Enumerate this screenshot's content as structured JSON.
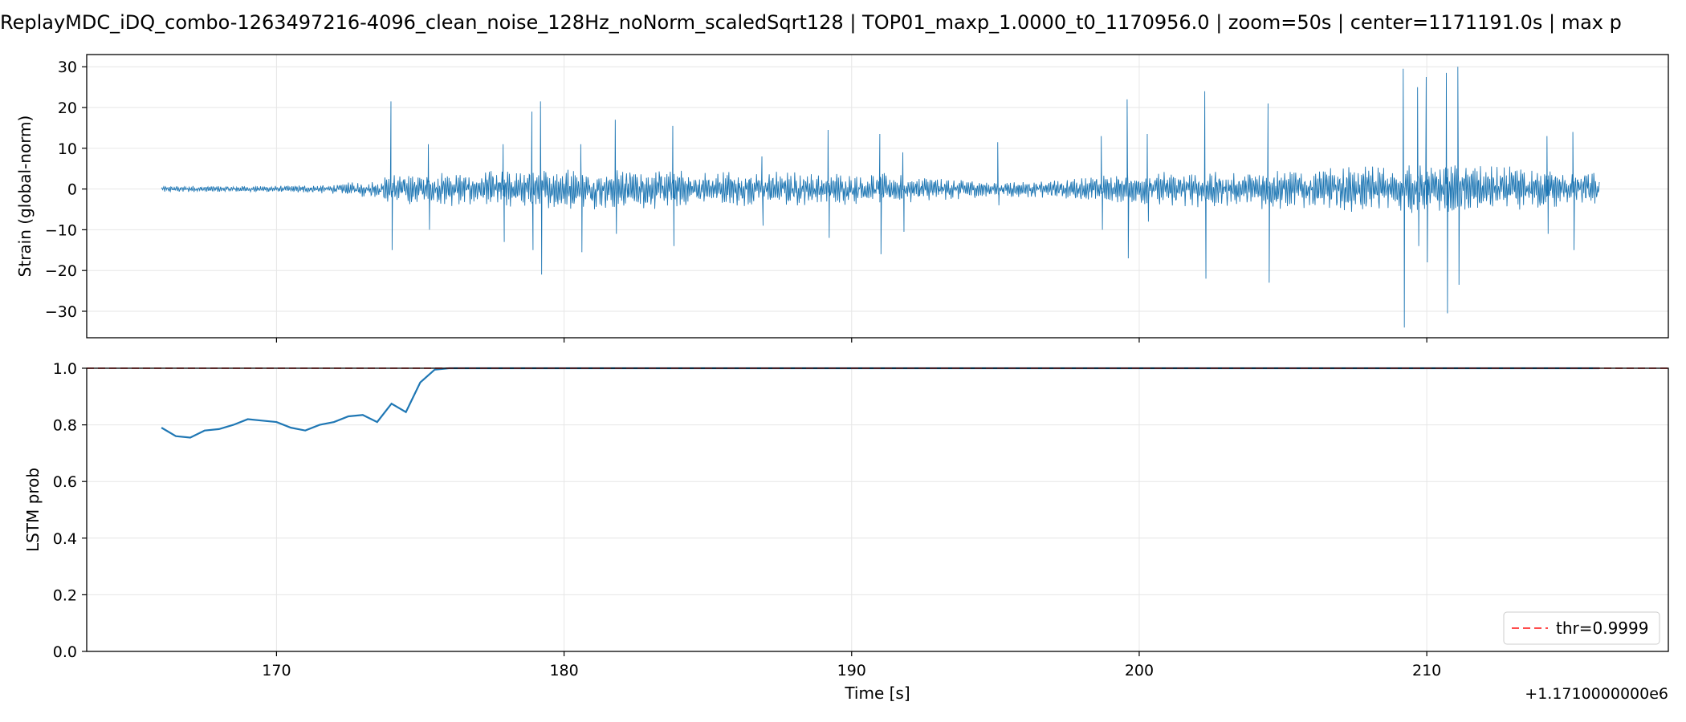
{
  "figure_title": "ReplayMDC_iDQ_combo-1263497216-4096_clean_noise_128Hz_noNorm_scaledSqrt128 | TOP01_maxp_1.0000_t0_1170956.0 | zoom=50s | center=1171191.0s | max p",
  "colors": {
    "series": "#1f77b4",
    "threshold": "#ff4d4d",
    "grid": "#e6e6e6"
  },
  "chart_data": [
    {
      "type": "line",
      "ylabel": "Strain (global-norm)",
      "xlim": [
        163.4,
        218.4
      ],
      "ylim": [
        -36.5,
        33.0
      ],
      "yticks": [
        -30,
        -20,
        -10,
        0,
        10,
        20,
        30
      ],
      "ytick_labels": [
        "−30",
        "−20",
        "−10",
        "0",
        "10",
        "20",
        "30"
      ],
      "xticks": [
        170,
        180,
        190,
        200,
        210
      ],
      "grid": true,
      "series": [
        {
          "x_start": 166.0,
          "x_end": 216.0,
          "envelope_t": [
            166,
            170,
            172,
            173.5,
            174,
            175,
            177,
            179,
            181,
            183,
            185,
            187,
            189,
            191,
            193,
            195,
            197,
            199,
            201,
            203,
            205,
            207,
            209,
            211,
            213,
            215,
            216
          ],
          "envelope_a": [
            0.8,
            0.8,
            1.2,
            2.5,
            4,
            4,
            4.5,
            5,
            5,
            5,
            4.5,
            4.5,
            4,
            4,
            3,
            2,
            2.5,
            3.5,
            4.5,
            5,
            5,
            5.5,
            6,
            6,
            5.5,
            5,
            4
          ],
          "spikes": [
            {
              "t": 174.0,
              "hi": 21.5,
              "lo": -15.0
            },
            {
              "t": 175.3,
              "hi": 11.0,
              "lo": -10.0
            },
            {
              "t": 177.9,
              "hi": 11.0,
              "lo": -13.0
            },
            {
              "t": 178.9,
              "hi": 19.0,
              "lo": -15.0
            },
            {
              "t": 179.2,
              "hi": 21.5,
              "lo": -21.0
            },
            {
              "t": 180.6,
              "hi": 11.0,
              "lo": -15.5
            },
            {
              "t": 181.8,
              "hi": 17.0,
              "lo": -11.0
            },
            {
              "t": 183.8,
              "hi": 15.5,
              "lo": -14.0
            },
            {
              "t": 186.9,
              "hi": 8.0,
              "lo": -9.0
            },
            {
              "t": 189.2,
              "hi": 14.5,
              "lo": -12.0
            },
            {
              "t": 191.0,
              "hi": 13.5,
              "lo": -16.0
            },
            {
              "t": 191.8,
              "hi": 9.0,
              "lo": -10.5
            },
            {
              "t": 195.1,
              "hi": 11.5,
              "lo": -4.0
            },
            {
              "t": 198.7,
              "hi": 13.0,
              "lo": -10.0
            },
            {
              "t": 199.6,
              "hi": 22.0,
              "lo": -17.0
            },
            {
              "t": 200.3,
              "hi": 13.5,
              "lo": -8.0
            },
            {
              "t": 202.3,
              "hi": 24.0,
              "lo": -22.0
            },
            {
              "t": 204.5,
              "hi": 21.0,
              "lo": -23.0
            },
            {
              "t": 209.2,
              "hi": 29.5,
              "lo": -34.0
            },
            {
              "t": 209.7,
              "hi": 25.0,
              "lo": -14.0
            },
            {
              "t": 210.0,
              "hi": 27.5,
              "lo": -18.0
            },
            {
              "t": 210.7,
              "hi": 28.5,
              "lo": -30.5
            },
            {
              "t": 211.1,
              "hi": 30.0,
              "lo": -23.5
            },
            {
              "t": 214.2,
              "hi": 13.0,
              "lo": -11.0
            },
            {
              "t": 215.1,
              "hi": 14.0,
              "lo": -15.0
            }
          ]
        }
      ]
    },
    {
      "type": "line",
      "ylabel": "LSTM prob",
      "xlabel": "Time [s]",
      "offset_label": "+1.1710000000e6",
      "xlim": [
        163.4,
        218.4
      ],
      "ylim": [
        0.0,
        1.0
      ],
      "yticks": [
        0.0,
        0.2,
        0.4,
        0.6,
        0.8,
        1.0
      ],
      "ytick_labels": [
        "0.0",
        "0.2",
        "0.4",
        "0.6",
        "0.8",
        "1.0"
      ],
      "xticks": [
        170,
        180,
        190,
        200,
        210
      ],
      "xtick_labels": [
        "170",
        "180",
        "190",
        "200",
        "210"
      ],
      "grid": true,
      "legend_position": "lower-right",
      "series": [
        {
          "x": [
            166.0,
            166.5,
            167.0,
            167.5,
            168.0,
            168.5,
            169.0,
            169.5,
            170.0,
            170.5,
            171.0,
            171.5,
            172.0,
            172.5,
            173.0,
            173.5,
            174.0,
            174.5,
            175.0,
            175.5,
            176.0,
            178.0,
            180.0,
            185.0,
            190.0,
            195.0,
            200.0,
            205.0,
            210.0,
            216.0
          ],
          "y": [
            0.79,
            0.76,
            0.755,
            0.78,
            0.785,
            0.8,
            0.82,
            0.815,
            0.81,
            0.79,
            0.78,
            0.8,
            0.81,
            0.83,
            0.835,
            0.81,
            0.875,
            0.845,
            0.95,
            0.995,
            1.0,
            1.0,
            1.0,
            1.0,
            1.0,
            1.0,
            1.0,
            1.0,
            1.0,
            1.0
          ]
        }
      ],
      "threshold": {
        "value": 0.9999,
        "label": "thr=0.9999"
      }
    }
  ]
}
